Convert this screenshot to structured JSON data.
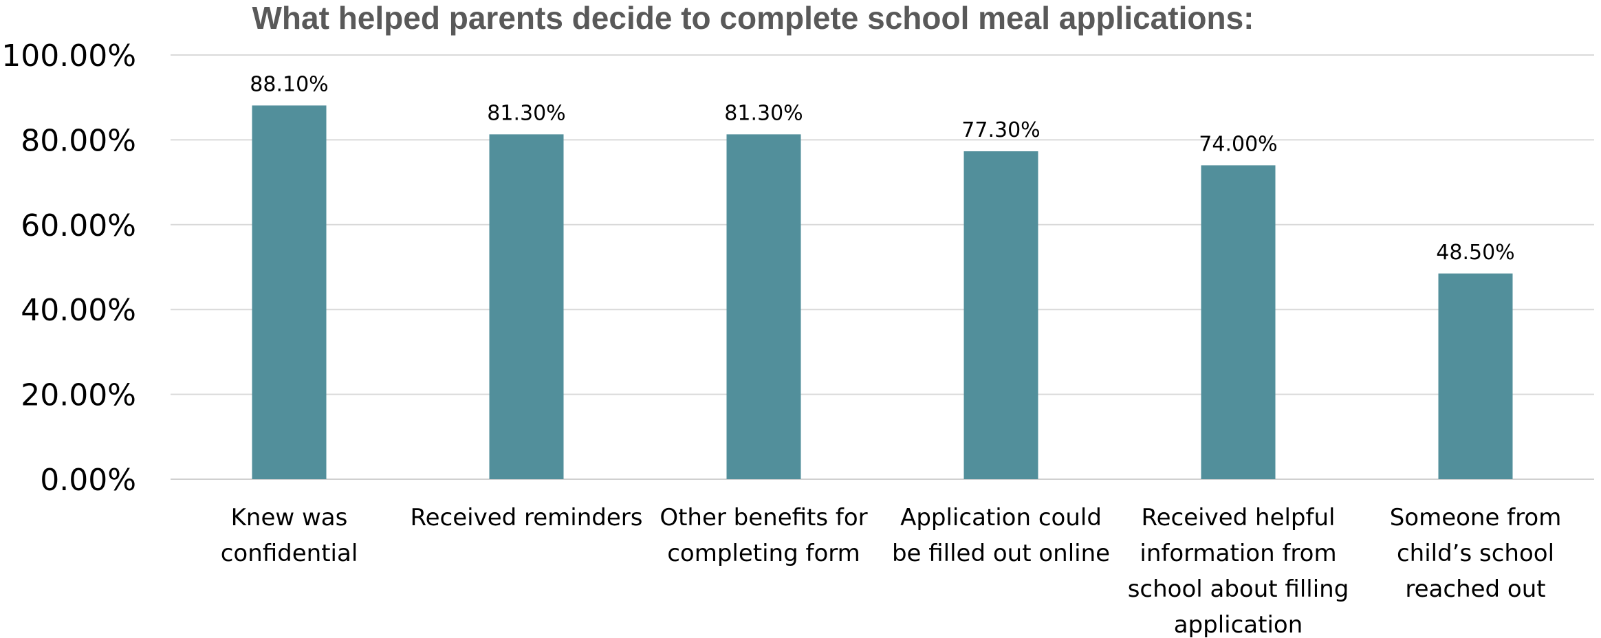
{
  "chart_data": {
    "type": "bar",
    "title": "What helped parents decide to complete school meal applications:",
    "xlabel": "",
    "ylabel": "",
    "categories": [
      [
        "Knew was",
        "confidential"
      ],
      [
        "Received reminders"
      ],
      [
        "Other benefits for",
        "completing form"
      ],
      [
        "Application could",
        "be filled out online"
      ],
      [
        "Received helpful",
        "information from",
        "school about filling",
        "application"
      ],
      [
        "Someone from",
        "child’s school",
        "reached out"
      ]
    ],
    "values": [
      88.1,
      81.3,
      81.3,
      77.3,
      74.0,
      48.5
    ],
    "data_labels": [
      "88.10%",
      "81.30%",
      "81.30%",
      "77.30%",
      "74.00%",
      "48.50%"
    ],
    "ylim": [
      0,
      100
    ],
    "yticks": [
      0,
      20,
      40,
      60,
      80,
      100
    ],
    "ytick_labels": [
      "0.00%",
      "20.00%",
      "40.00%",
      "60.00%",
      "80.00%",
      "100.00%"
    ],
    "grid": true,
    "legend": "none",
    "bar_color": "#528f9b"
  }
}
